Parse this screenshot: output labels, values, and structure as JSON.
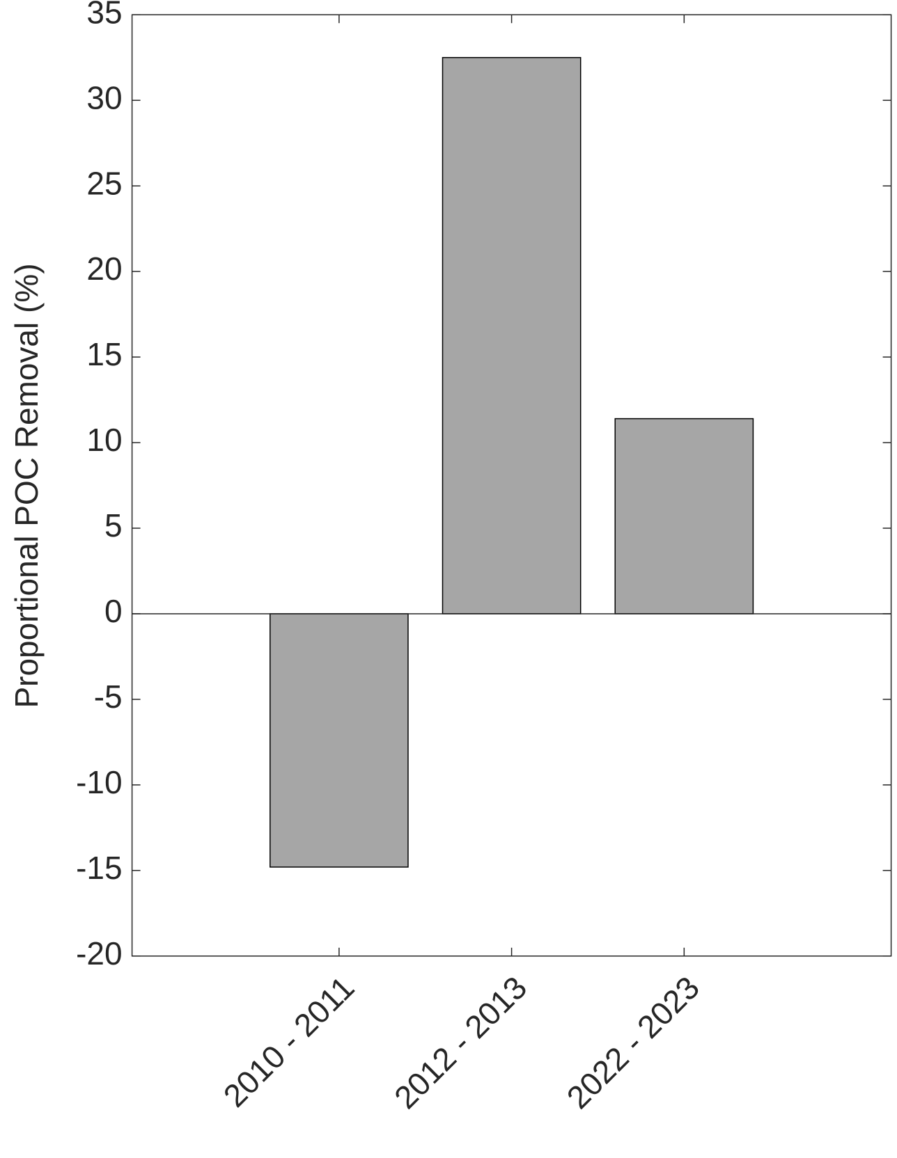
{
  "chart_data": {
    "type": "bar",
    "y_label": "Proportional POC Removal (%)",
    "categories": [
      "2010 - 2011",
      "2012 - 2013",
      "2022 - 2023"
    ],
    "values": [
      -14.8,
      32.5,
      11.4
    ],
    "color": "#a6a6a6",
    "ylim": [
      -20,
      35
    ],
    "yticks": [
      -20,
      -15,
      -10,
      -5,
      0,
      5,
      10,
      15,
      20,
      25,
      30,
      35
    ]
  }
}
